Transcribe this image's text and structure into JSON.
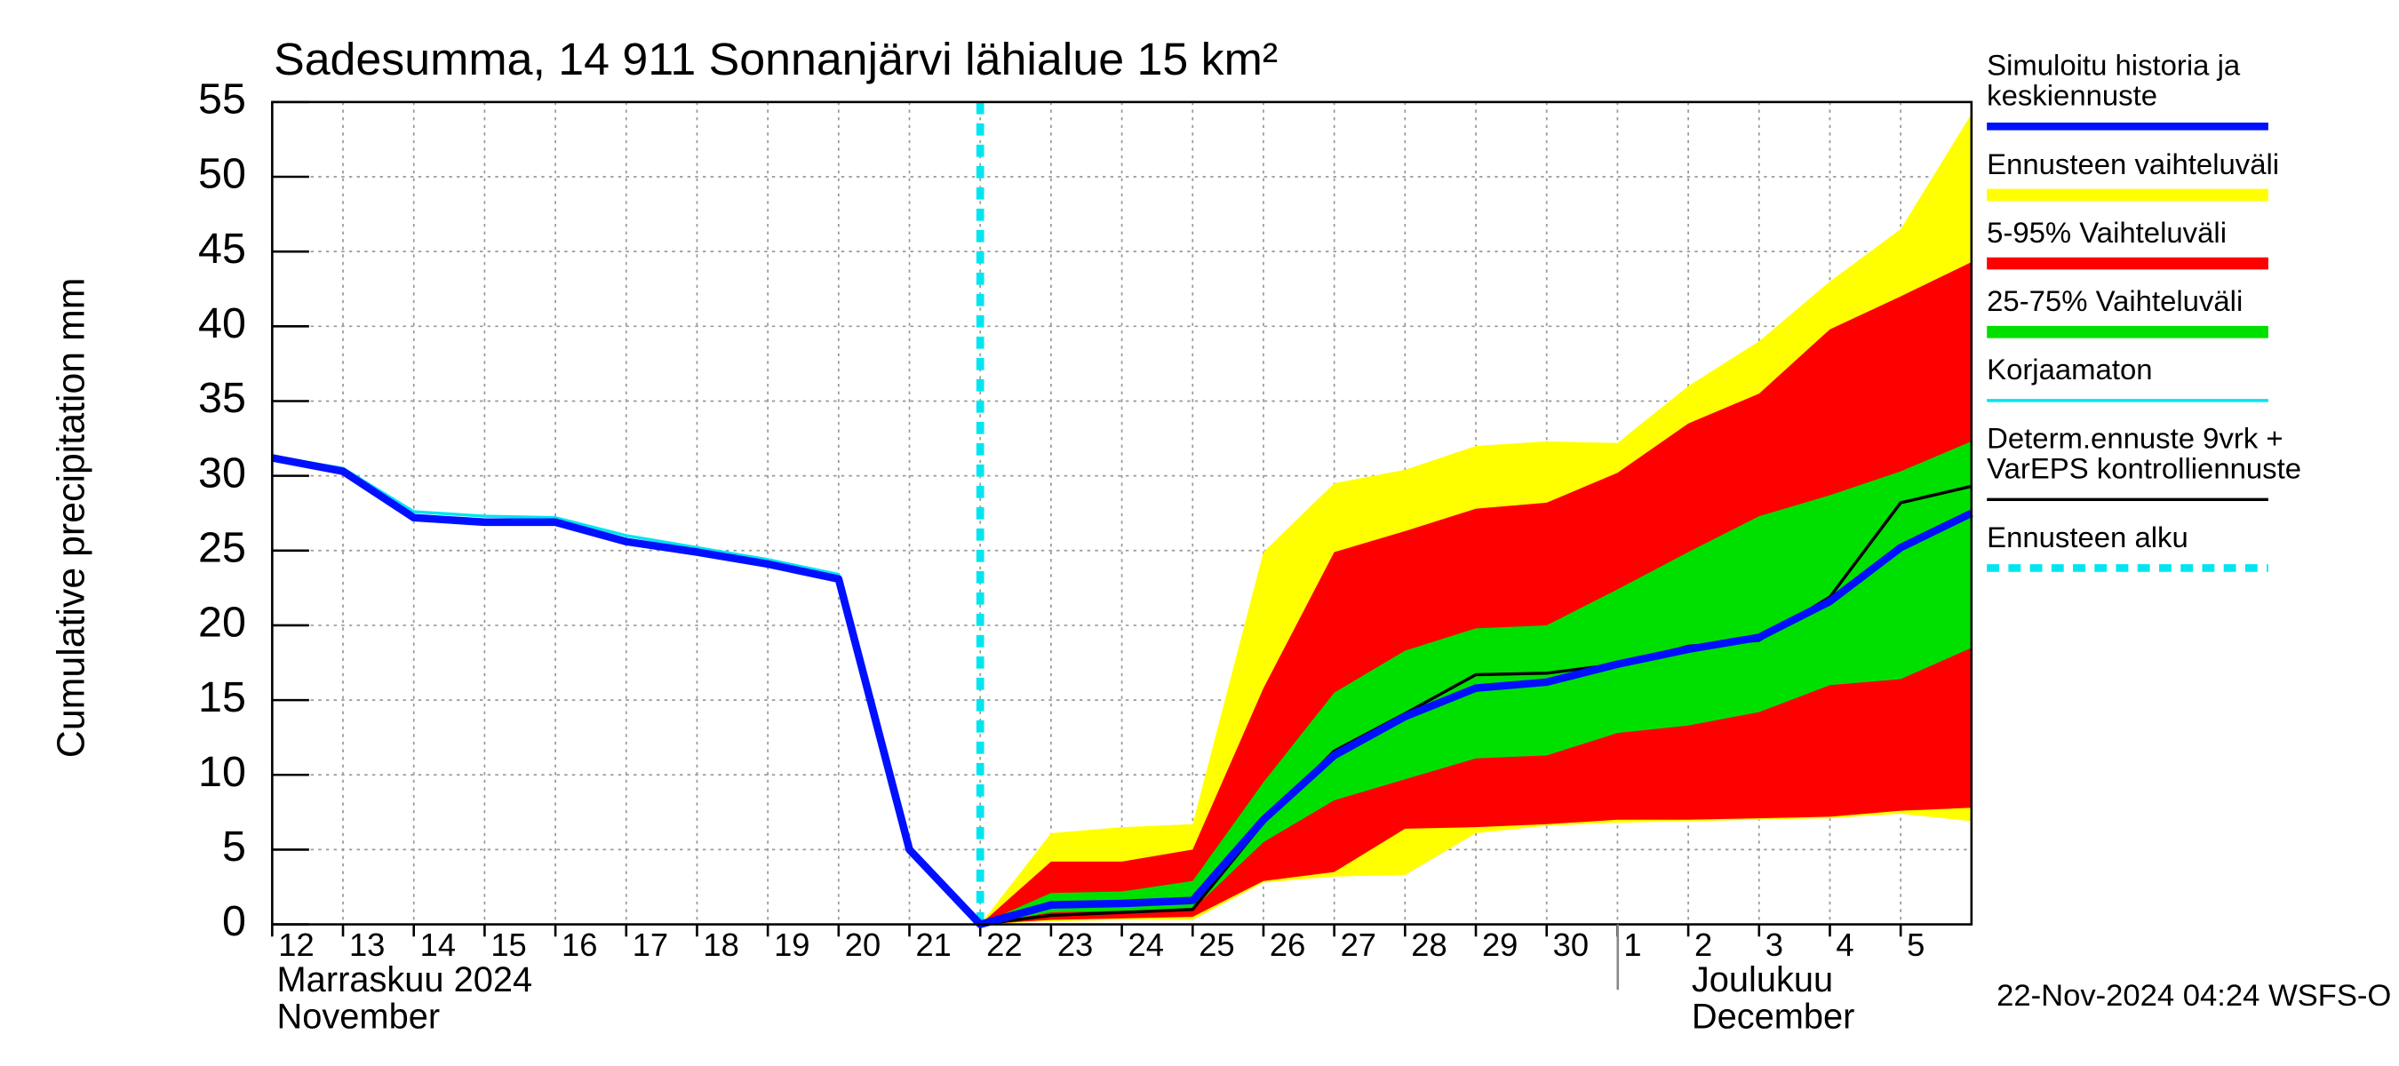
{
  "chart_data": {
    "type": "line",
    "title": "Sadesumma, 14 911 Sonnanjärvi lähialue 15 km²",
    "y_label": "Cumulative precipitation   mm",
    "months": [
      {
        "fi": "Marraskuu 2024",
        "en": "November"
      },
      {
        "fi": "Joulukuu",
        "en": "December"
      }
    ],
    "timestamp": "22-Nov-2024 04:24 WSFS-O",
    "grid": true,
    "ylim": [
      0,
      55
    ],
    "yticks": [
      0,
      5,
      10,
      15,
      20,
      25,
      30,
      35,
      40,
      45,
      50,
      55
    ],
    "xlim": [
      0,
      24
    ],
    "xticks": [
      {
        "value": 0,
        "label": "12"
      },
      {
        "value": 1,
        "label": "13"
      },
      {
        "value": 2,
        "label": "14"
      },
      {
        "value": 3,
        "label": "15"
      },
      {
        "value": 4,
        "label": "16"
      },
      {
        "value": 5,
        "label": "17"
      },
      {
        "value": 6,
        "label": "18"
      },
      {
        "value": 7,
        "label": "19"
      },
      {
        "value": 8,
        "label": "20"
      },
      {
        "value": 9,
        "label": "21"
      },
      {
        "value": 10,
        "label": "22"
      },
      {
        "value": 11,
        "label": "23"
      },
      {
        "value": 12,
        "label": "24"
      },
      {
        "value": 13,
        "label": "25"
      },
      {
        "value": 14,
        "label": "26"
      },
      {
        "value": 15,
        "label": "27"
      },
      {
        "value": 16,
        "label": "28"
      },
      {
        "value": 17,
        "label": "29"
      },
      {
        "value": 18,
        "label": "30"
      },
      {
        "value": 19,
        "label": "1"
      },
      {
        "value": 20,
        "label": "2"
      },
      {
        "value": 21,
        "label": "3"
      },
      {
        "value": 22,
        "label": "4"
      },
      {
        "value": 23,
        "label": "5"
      }
    ],
    "x": [
      0,
      1,
      2,
      3,
      4,
      5,
      6,
      7,
      8,
      9,
      10,
      11,
      12,
      13,
      14,
      15,
      16,
      17,
      18,
      19,
      20,
      21,
      22,
      23,
      24
    ],
    "series": [
      {
        "name": "Simuloitu historia ja\nkeskiennuste",
        "kind": "line",
        "color": "#0010ff",
        "width": 5,
        "values": [
          31.2,
          30.3,
          27.2,
          26.9,
          26.9,
          25.6,
          24.9,
          24.1,
          23.1,
          5.0,
          0,
          1.3,
          1.4,
          1.6,
          7.0,
          11.3,
          13.9,
          15.8,
          16.2,
          17.4,
          18.4,
          19.2,
          21.6,
          25.2,
          27.5
        ]
      },
      {
        "name": "Ennusteen vaihteluväli",
        "kind": "band",
        "color": "#ffff00",
        "high": [
          null,
          null,
          null,
          null,
          null,
          null,
          null,
          null,
          null,
          null,
          0,
          6.1,
          6.5,
          6.7,
          24.9,
          29.5,
          30.4,
          32.0,
          32.3,
          32.2,
          36.0,
          39.0,
          43.0,
          46.5,
          54.2
        ],
        "low": [
          null,
          null,
          null,
          null,
          null,
          null,
          null,
          null,
          null,
          null,
          0,
          0.2,
          0.3,
          0.3,
          2.8,
          3.2,
          3.3,
          6.1,
          6.6,
          6.8,
          6.9,
          7.0,
          7.1,
          7.4,
          6.9
        ]
      },
      {
        "name": "5-95% Vaihteluväli",
        "kind": "band",
        "color": "#ff0000",
        "high": [
          null,
          null,
          null,
          null,
          null,
          null,
          null,
          null,
          null,
          null,
          0,
          4.2,
          4.2,
          5.0,
          15.8,
          24.9,
          26.3,
          27.8,
          28.2,
          30.2,
          33.5,
          35.5,
          39.8,
          42.0,
          44.3
        ],
        "low": [
          null,
          null,
          null,
          null,
          null,
          null,
          null,
          null,
          null,
          null,
          0,
          0.3,
          0.4,
          0.5,
          2.9,
          3.5,
          6.4,
          6.5,
          6.7,
          7.0,
          7.0,
          7.1,
          7.2,
          7.6,
          7.8
        ]
      },
      {
        "name": "25-75% Vaihteluväli",
        "kind": "band",
        "color": "#00e000",
        "high": [
          null,
          null,
          null,
          null,
          null,
          null,
          null,
          null,
          null,
          null,
          0,
          2.1,
          2.2,
          2.9,
          9.5,
          15.5,
          18.3,
          19.8,
          20.0,
          22.4,
          24.9,
          27.3,
          28.7,
          30.3,
          32.3
        ],
        "low": [
          null,
          null,
          null,
          null,
          null,
          null,
          null,
          null,
          null,
          null,
          0,
          0.8,
          0.9,
          1.0,
          5.5,
          8.3,
          9.7,
          11.1,
          11.3,
          12.8,
          13.3,
          14.2,
          16.0,
          16.4,
          18.5
        ]
      },
      {
        "name": "Korjaamaton",
        "kind": "line",
        "color": "#00e5f0",
        "width": 2,
        "values": [
          31.3,
          30.5,
          27.6,
          27.3,
          27.2,
          26.0,
          25.2,
          24.4,
          23.4,
          5.0,
          0,
          null,
          null,
          null,
          null,
          null,
          null,
          null,
          null,
          null,
          null,
          null,
          null,
          null,
          null
        ]
      },
      {
        "name": "Determ.ennuste 9vrk +\nVarEPS kontrolliennuste",
        "kind": "line",
        "color": "#000000",
        "width": 2,
        "values": [
          null,
          null,
          null,
          null,
          null,
          null,
          null,
          null,
          null,
          null,
          0,
          0.6,
          0.8,
          1.0,
          6.8,
          11.6,
          14.1,
          16.7,
          16.8,
          17.4,
          18.6,
          19.0,
          21.9,
          28.2,
          29.3
        ]
      }
    ],
    "forecast_start": {
      "name": "Ennusteen alku",
      "color": "#00e5f0",
      "x": 10
    }
  }
}
